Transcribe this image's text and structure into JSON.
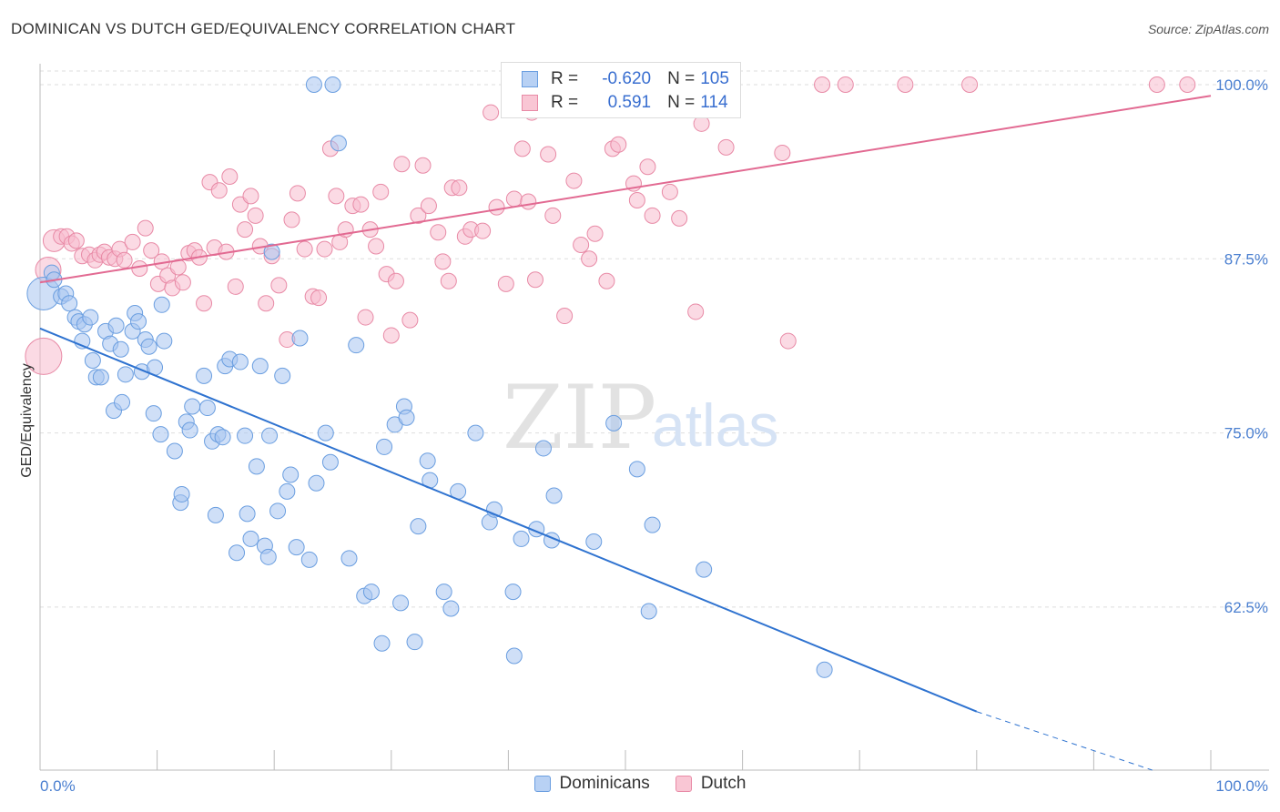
{
  "title": "DOMINICAN VS DUTCH GED/EQUIVALENCY CORRELATION CHART",
  "source": "Source: ZipAtlas.com",
  "watermark": {
    "zip": "ZIP",
    "atlas": "atlas"
  },
  "legend_top": {
    "rows": [
      {
        "r_label": "R =",
        "r_value": "-0.620",
        "n_label": "N =",
        "n_value": "105",
        "color": "#a7c5f0",
        "border": "#6a9ee0"
      },
      {
        "r_label": "R =",
        "r_value": "0.591",
        "n_label": "N =",
        "n_value": "114",
        "color": "#f8bccd",
        "border": "#e88aa6"
      }
    ]
  },
  "legend_bottom": [
    {
      "label": "Dominicans",
      "color": "#b8d1f4",
      "border": "#6a9ee0"
    },
    {
      "label": "Dutch",
      "color": "#f9c6d4",
      "border": "#e88aa6"
    }
  ],
  "chart_data": {
    "type": "scatter",
    "title": "DOMINICAN VS DUTCH GED/EQUIVALENCY CORRELATION CHART",
    "xlabel": "",
    "ylabel": "GED/Equivalency",
    "xlim": [
      0,
      100
    ],
    "ylim": [
      50.8,
      101.5
    ],
    "x_tick_labels": [
      "0.0%",
      "100.0%"
    ],
    "y_ticks": [
      62.5,
      75.0,
      87.5,
      100.0
    ],
    "y_tick_labels": [
      "62.5%",
      "75.0%",
      "87.5%",
      "100.0%"
    ],
    "grid": "horizontal dashed",
    "legend_placement": "top-center and bottom",
    "series": [
      {
        "name": "Dominicans",
        "color": "#a7c5f0",
        "stroke": "#6a9ee0",
        "r": -0.62,
        "n": 105,
        "trend": {
          "x": [
            0,
            80
          ],
          "y": [
            82.5,
            55.0
          ],
          "dashed_to": [
            95,
            50.8
          ],
          "color": "#2f73d0"
        },
        "points": [
          [
            0.3,
            85.0
          ],
          [
            1.0,
            86.5
          ],
          [
            1.2,
            86.0
          ],
          [
            1.8,
            84.8
          ],
          [
            2.2,
            85.0
          ],
          [
            2.5,
            84.3
          ],
          [
            3.0,
            83.3
          ],
          [
            3.3,
            83.0
          ],
          [
            3.8,
            82.8
          ],
          [
            4.3,
            83.3
          ],
          [
            3.6,
            81.6
          ],
          [
            4.5,
            80.2
          ],
          [
            4.8,
            79.0
          ],
          [
            5.2,
            79.0
          ],
          [
            5.6,
            82.3
          ],
          [
            6.0,
            81.4
          ],
          [
            6.5,
            82.7
          ],
          [
            6.9,
            81.0
          ],
          [
            7.3,
            79.2
          ],
          [
            7.9,
            82.3
          ],
          [
            8.1,
            83.6
          ],
          [
            8.4,
            83.0
          ],
          [
            8.7,
            79.4
          ],
          [
            9.0,
            81.7
          ],
          [
            9.3,
            81.2
          ],
          [
            9.8,
            79.7
          ],
          [
            10.4,
            84.2
          ],
          [
            10.6,
            81.6
          ],
          [
            6.3,
            76.6
          ],
          [
            7.0,
            77.2
          ],
          [
            9.7,
            76.4
          ],
          [
            10.3,
            74.9
          ],
          [
            11.5,
            73.7
          ],
          [
            12.0,
            70.0
          ],
          [
            12.1,
            70.6
          ],
          [
            12.5,
            75.8
          ],
          [
            12.8,
            75.2
          ],
          [
            13.0,
            76.9
          ],
          [
            14.0,
            79.1
          ],
          [
            14.3,
            76.8
          ],
          [
            14.7,
            74.4
          ],
          [
            15.2,
            74.9
          ],
          [
            15.0,
            69.1
          ],
          [
            15.6,
            74.7
          ],
          [
            15.8,
            79.8
          ],
          [
            16.2,
            80.3
          ],
          [
            16.8,
            66.4
          ],
          [
            17.1,
            80.1
          ],
          [
            17.7,
            69.2
          ],
          [
            17.5,
            74.8
          ],
          [
            18.0,
            67.4
          ],
          [
            18.5,
            72.6
          ],
          [
            18.8,
            79.8
          ],
          [
            19.2,
            66.9
          ],
          [
            19.6,
            74.8
          ],
          [
            19.8,
            88.0
          ],
          [
            19.5,
            66.1
          ],
          [
            20.3,
            69.4
          ],
          [
            20.7,
            79.1
          ],
          [
            21.1,
            70.8
          ],
          [
            21.4,
            72.0
          ],
          [
            21.9,
            66.8
          ],
          [
            22.2,
            81.8
          ],
          [
            23.0,
            65.9
          ],
          [
            23.6,
            71.4
          ],
          [
            24.4,
            75.0
          ],
          [
            24.8,
            72.9
          ],
          [
            25.0,
            100.0
          ],
          [
            26.4,
            66.0
          ],
          [
            27.0,
            81.3
          ],
          [
            25.5,
            95.8
          ],
          [
            27.7,
            63.3
          ],
          [
            28.3,
            63.6
          ],
          [
            29.4,
            74.0
          ],
          [
            29.2,
            59.9
          ],
          [
            30.3,
            75.6
          ],
          [
            30.8,
            62.8
          ],
          [
            31.1,
            76.9
          ],
          [
            31.3,
            76.1
          ],
          [
            32.0,
            60.0
          ],
          [
            32.3,
            68.3
          ],
          [
            33.1,
            73.0
          ],
          [
            33.3,
            71.6
          ],
          [
            34.5,
            63.6
          ],
          [
            35.1,
            62.4
          ],
          [
            35.7,
            70.8
          ],
          [
            37.2,
            75.0
          ],
          [
            38.4,
            68.6
          ],
          [
            38.8,
            69.5
          ],
          [
            40.4,
            63.6
          ],
          [
            40.5,
            59.0
          ],
          [
            41.1,
            67.4
          ],
          [
            42.4,
            68.1
          ],
          [
            43.0,
            73.9
          ],
          [
            43.7,
            67.3
          ],
          [
            43.9,
            70.5
          ],
          [
            47.3,
            67.2
          ],
          [
            49.0,
            75.7
          ],
          [
            51.0,
            72.4
          ],
          [
            52.0,
            62.2
          ],
          [
            52.3,
            68.4
          ],
          [
            56.7,
            65.2
          ],
          [
            67.0,
            58.0
          ],
          [
            23.4,
            100.0
          ]
        ]
      },
      {
        "name": "Dutch",
        "color": "#f8bccd",
        "stroke": "#e88aa6",
        "r": 0.591,
        "n": 114,
        "trend": {
          "x": [
            0,
            100
          ],
          "y": [
            85.8,
            99.2
          ],
          "color": "#e26a92"
        },
        "points": [
          [
            0.3,
            80.5
          ],
          [
            0.7,
            86.7
          ],
          [
            1.2,
            88.8
          ],
          [
            1.8,
            89.1
          ],
          [
            2.3,
            89.1
          ],
          [
            2.7,
            88.6
          ],
          [
            3.1,
            88.8
          ],
          [
            3.6,
            87.7
          ],
          [
            4.2,
            87.8
          ],
          [
            4.7,
            87.4
          ],
          [
            5.1,
            87.8
          ],
          [
            5.5,
            88.0
          ],
          [
            5.9,
            87.6
          ],
          [
            6.4,
            87.5
          ],
          [
            6.8,
            88.2
          ],
          [
            7.2,
            87.4
          ],
          [
            7.9,
            88.7
          ],
          [
            8.5,
            86.8
          ],
          [
            9.0,
            89.7
          ],
          [
            9.5,
            88.1
          ],
          [
            10.1,
            85.7
          ],
          [
            10.4,
            87.3
          ],
          [
            10.9,
            86.3
          ],
          [
            11.3,
            85.4
          ],
          [
            11.8,
            86.9
          ],
          [
            12.2,
            85.8
          ],
          [
            12.7,
            87.9
          ],
          [
            13.2,
            88.1
          ],
          [
            13.6,
            87.6
          ],
          [
            14.0,
            84.3
          ],
          [
            14.5,
            93.0
          ],
          [
            14.9,
            88.3
          ],
          [
            15.3,
            92.4
          ],
          [
            15.9,
            88.0
          ],
          [
            16.2,
            93.4
          ],
          [
            16.7,
            85.5
          ],
          [
            17.1,
            91.4
          ],
          [
            17.5,
            89.6
          ],
          [
            18.0,
            92.0
          ],
          [
            18.4,
            90.6
          ],
          [
            18.8,
            88.4
          ],
          [
            19.3,
            84.3
          ],
          [
            19.8,
            87.7
          ],
          [
            20.4,
            85.6
          ],
          [
            21.1,
            81.7
          ],
          [
            21.5,
            90.3
          ],
          [
            22.0,
            92.2
          ],
          [
            22.6,
            88.2
          ],
          [
            23.3,
            84.8
          ],
          [
            23.8,
            84.7
          ],
          [
            24.3,
            88.2
          ],
          [
            24.8,
            95.4
          ],
          [
            25.3,
            92.0
          ],
          [
            25.6,
            88.7
          ],
          [
            26.1,
            89.6
          ],
          [
            26.7,
            91.3
          ],
          [
            27.4,
            91.4
          ],
          [
            27.8,
            83.3
          ],
          [
            28.2,
            89.6
          ],
          [
            28.7,
            88.4
          ],
          [
            29.1,
            92.3
          ],
          [
            29.6,
            86.4
          ],
          [
            30.0,
            82.0
          ],
          [
            30.4,
            85.9
          ],
          [
            30.9,
            94.3
          ],
          [
            31.6,
            83.1
          ],
          [
            32.3,
            90.6
          ],
          [
            32.7,
            94.2
          ],
          [
            33.2,
            91.3
          ],
          [
            34.0,
            89.4
          ],
          [
            34.4,
            87.3
          ],
          [
            34.9,
            85.9
          ],
          [
            35.2,
            92.6
          ],
          [
            35.8,
            92.6
          ],
          [
            36.3,
            89.1
          ],
          [
            36.8,
            89.6
          ],
          [
            37.8,
            89.5
          ],
          [
            38.5,
            98.0
          ],
          [
            39.0,
            91.2
          ],
          [
            39.8,
            85.7
          ],
          [
            40.5,
            91.8
          ],
          [
            41.2,
            95.4
          ],
          [
            41.7,
            91.6
          ],
          [
            42.3,
            86.0
          ],
          [
            43.4,
            95.0
          ],
          [
            43.8,
            90.6
          ],
          [
            44.8,
            83.4
          ],
          [
            45.6,
            93.1
          ],
          [
            46.2,
            88.5
          ],
          [
            46.9,
            87.5
          ],
          [
            47.4,
            89.3
          ],
          [
            48.4,
            85.9
          ],
          [
            48.9,
            95.4
          ],
          [
            49.4,
            95.7
          ],
          [
            50.7,
            92.9
          ],
          [
            51.0,
            91.7
          ],
          [
            51.9,
            94.1
          ],
          [
            52.3,
            90.6
          ],
          [
            53.8,
            92.3
          ],
          [
            54.6,
            90.4
          ],
          [
            56.5,
            97.2
          ],
          [
            56.0,
            83.7
          ],
          [
            58.6,
            95.5
          ],
          [
            63.4,
            95.1
          ],
          [
            63.9,
            81.6
          ],
          [
            66.8,
            100.0
          ],
          [
            68.8,
            100.0
          ],
          [
            73.9,
            100.0
          ],
          [
            79.4,
            100.0
          ],
          [
            95.4,
            100.0
          ],
          [
            98.0,
            100.0
          ],
          [
            42.0,
            98.0
          ]
        ]
      }
    ]
  }
}
